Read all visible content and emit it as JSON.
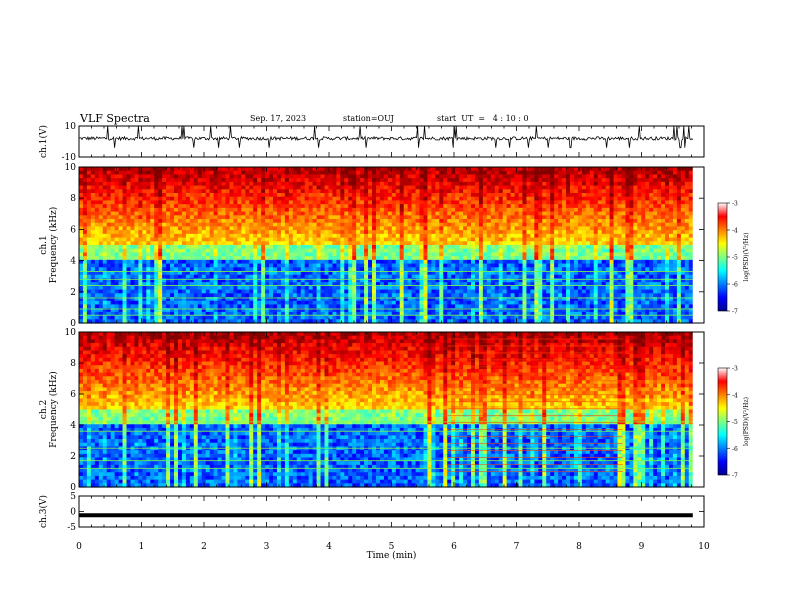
{
  "header": {
    "title": "VLF Spectra",
    "date": "Sep. 17, 2023",
    "station": "station=OUJ",
    "start": "start  UT  =   4 : 10 : 0"
  },
  "chart_data": [
    {
      "type": "line",
      "panel": "ch1-waveform",
      "ylabel": "ch.1(V)",
      "ylim": [
        -10,
        10
      ],
      "yticks": [
        "10",
        "-10"
      ],
      "baseline": 2.0,
      "noise": "impulsive spikes"
    },
    {
      "type": "heatmap",
      "panel": "ch1-spectrogram",
      "ylabel": "ch.1\nFrequency (kHz)",
      "ylim": [
        0,
        10
      ],
      "yticks": [
        "0",
        "2",
        "4",
        "6",
        "8",
        "10"
      ],
      "colorbar": {
        "label": "log(PSD)(V²/Hz)",
        "range": [
          -7,
          -3
        ],
        "ticks": [
          "-3",
          "-4",
          "-5",
          "-6",
          "-7"
        ]
      },
      "colormap": "jet",
      "lines_khz": [
        0.5,
        0.9,
        1.6,
        2.4,
        2.8,
        3.3
      ]
    },
    {
      "type": "heatmap",
      "panel": "ch2-spectrogram",
      "ylabel": "ch.2\nFrequency (kHz)",
      "ylim": [
        0,
        10
      ],
      "yticks": [
        "0",
        "2",
        "4",
        "6",
        "8",
        "10"
      ],
      "colorbar": {
        "label": "log(PSD)(V²/Hz)",
        "range": [
          -7,
          -3
        ],
        "ticks": [
          "-3",
          "-4",
          "-5",
          "-6",
          "-7"
        ]
      },
      "colormap": "jet",
      "lines_khz": [
        1.2,
        1.7,
        2.5,
        3.6,
        4.2
      ],
      "band_interference_min": [
        5.9,
        8.7
      ]
    },
    {
      "type": "line",
      "panel": "ch3-waveform",
      "ylabel": "ch.3(V)",
      "ylim": [
        -5,
        5
      ],
      "yticks": [
        "5",
        "0",
        "-5"
      ],
      "baseline": -1.2
    }
  ],
  "time_axis": {
    "xlabel": "Time (min)",
    "xlim": [
      0,
      10
    ],
    "data_end_min": 9.82,
    "ticks": [
      "0",
      "1",
      "2",
      "3",
      "4",
      "5",
      "6",
      "7",
      "8",
      "9",
      "10"
    ]
  },
  "colors": {
    "axis": "#000000",
    "background": "#ffffff",
    "trace": "#000000"
  }
}
